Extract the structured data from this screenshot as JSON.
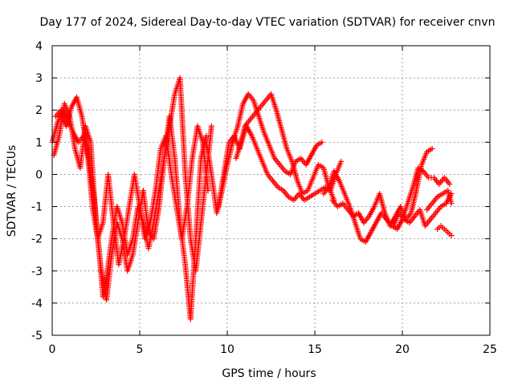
{
  "chart_data": {
    "type": "scatter",
    "title": "Day 177 of 2024, Sidereal Day-to-day VTEC variation (SDTVAR) for receiver cnvn",
    "xlabel": "GPS time / hours",
    "ylabel": "SDTVAR / TECUs",
    "xlim": [
      0,
      25
    ],
    "ylim": [
      -5,
      4
    ],
    "xticks": [
      "0",
      "5",
      "10",
      "15",
      "20",
      "25"
    ],
    "yticks": [
      "4",
      "3",
      "2",
      "1",
      "0",
      "-1",
      "-2",
      "-3",
      "-4",
      "-5"
    ],
    "grid": true,
    "marker": "+",
    "color": "#ff0000",
    "series": [
      {
        "name": "satellite-track-1",
        "x": [
          0.0,
          0.3,
          0.6,
          0.9,
          1.2,
          1.5,
          1.8,
          2.1,
          2.4,
          2.7,
          2.9,
          3.1,
          3.4,
          3.7,
          4.0,
          4.3,
          4.6,
          4.9,
          5.2,
          5.5,
          5.8,
          6.1,
          6.4,
          6.7,
          7.0,
          7.3,
          7.6,
          7.9,
          8.2,
          8.5,
          8.8,
          9.1
        ],
        "y": [
          1.0,
          1.6,
          2.0,
          1.7,
          1.3,
          1.0,
          1.2,
          0.5,
          -0.8,
          -2.5,
          -3.8,
          -3.2,
          -2.0,
          -1.0,
          -1.5,
          -2.5,
          -2.0,
          -1.0,
          -1.5,
          -2.3,
          -1.5,
          -0.5,
          0.5,
          1.5,
          2.5,
          3.0,
          0.0,
          -2.0,
          -3.0,
          -1.5,
          0.0,
          1.5
        ]
      },
      {
        "name": "satellite-track-2",
        "x": [
          0.1,
          0.4,
          0.7,
          1.0,
          1.3,
          1.6,
          1.9,
          2.2,
          2.5,
          2.8,
          3.1,
          3.4,
          3.7,
          4.0,
          4.3,
          4.6,
          4.9,
          5.2,
          5.5,
          5.8,
          6.1,
          6.4,
          6.7,
          7.0,
          7.3,
          7.6,
          7.9,
          8.2,
          8.5,
          8.8
        ],
        "y": [
          0.6,
          1.2,
          2.2,
          1.8,
          0.8,
          0.2,
          1.5,
          1.0,
          -1.5,
          -3.0,
          -3.9,
          -2.5,
          -1.5,
          -2.0,
          -3.0,
          -2.5,
          -1.5,
          -0.5,
          -1.8,
          -2.0,
          -1.0,
          0.5,
          1.8,
          0.5,
          -1.5,
          -2.8,
          -4.5,
          -2.0,
          0.5,
          1.2
        ]
      },
      {
        "name": "satellite-track-3",
        "x": [
          0.2,
          0.5,
          0.8,
          1.1,
          1.4,
          1.7,
          2.0,
          2.3,
          2.6,
          2.9,
          3.2,
          3.5,
          3.8,
          4.1,
          4.4,
          4.7,
          5.0,
          5.3,
          5.6,
          5.9,
          6.2,
          6.5,
          6.8,
          7.1,
          7.4,
          7.7,
          8.0,
          8.3,
          8.6,
          8.9
        ],
        "y": [
          1.8,
          2.0,
          1.5,
          2.1,
          2.4,
          1.8,
          0.8,
          -1.0,
          -2.0,
          -1.5,
          0.0,
          -1.5,
          -2.8,
          -2.0,
          -1.0,
          0.0,
          -1.0,
          -2.0,
          -1.5,
          -0.5,
          0.8,
          1.2,
          0.0,
          -1.0,
          -2.0,
          -1.0,
          0.5,
          1.5,
          1.0,
          -0.5
        ]
      },
      {
        "name": "satellite-track-4",
        "x": [
          8.8,
          9.1,
          9.4,
          9.7,
          10.0,
          10.3,
          10.6,
          10.9,
          11.2,
          11.5,
          11.8,
          12.1,
          12.4,
          12.7,
          13.0,
          13.3,
          13.6,
          13.9,
          14.2,
          14.5,
          14.8,
          15.1,
          15.4
        ],
        "y": [
          1.0,
          0.0,
          -1.2,
          -0.5,
          0.3,
          1.0,
          1.5,
          2.2,
          2.5,
          2.3,
          1.8,
          1.3,
          0.9,
          0.5,
          0.3,
          0.1,
          0.0,
          0.4,
          0.5,
          0.3,
          0.6,
          0.9,
          1.0
        ]
      },
      {
        "name": "satellite-track-5",
        "x": [
          9.5,
          9.8,
          10.1,
          10.4,
          10.7,
          11.0,
          11.3,
          11.6,
          11.9,
          12.2,
          12.5,
          12.8,
          13.1,
          13.4,
          13.7,
          14.0,
          14.3,
          14.6,
          14.9,
          15.2,
          15.5,
          15.8,
          16.1
        ],
        "y": [
          -1.0,
          0.0,
          1.0,
          1.2,
          0.8,
          1.5,
          1.7,
          1.9,
          2.1,
          2.3,
          2.5,
          2.0,
          1.4,
          0.8,
          0.4,
          -0.2,
          -0.6,
          -0.5,
          -0.1,
          0.3,
          0.2,
          -0.4,
          -0.8
        ]
      },
      {
        "name": "satellite-track-6",
        "x": [
          10.5,
          10.8,
          11.1,
          11.4,
          11.7,
          12.0,
          12.3,
          12.6,
          12.9,
          13.2,
          13.5,
          13.8,
          14.1,
          14.4,
          14.7,
          15.0,
          15.3,
          15.6,
          15.9,
          16.2,
          16.5
        ],
        "y": [
          0.5,
          1.0,
          1.5,
          1.2,
          0.8,
          0.4,
          0.0,
          -0.2,
          -0.4,
          -0.5,
          -0.7,
          -0.8,
          -0.6,
          -0.8,
          -0.7,
          -0.6,
          -0.5,
          -0.4,
          -0.5,
          0.0,
          0.4
        ]
      },
      {
        "name": "satellite-track-7",
        "x": [
          15.5,
          15.8,
          16.1,
          16.4,
          16.7,
          17.0,
          17.3,
          17.6,
          17.9,
          18.2,
          18.5,
          18.8,
          19.1,
          19.4,
          19.7,
          20.0,
          20.3,
          20.6,
          20.9,
          21.2,
          21.5,
          21.8,
          22.1,
          22.4,
          22.7
        ],
        "y": [
          -0.6,
          -0.4,
          0.1,
          -0.2,
          -0.6,
          -1.0,
          -1.5,
          -2.0,
          -2.1,
          -1.8,
          -1.5,
          -1.2,
          -1.4,
          -1.6,
          -1.7,
          -1.4,
          -0.9,
          -0.4,
          0.2,
          0.1,
          -0.1,
          -0.1,
          -0.3,
          -0.1,
          -0.3
        ]
      },
      {
        "name": "satellite-track-8",
        "x": [
          16.0,
          16.3,
          16.6,
          16.9,
          17.2,
          17.5,
          17.8,
          18.1,
          18.4,
          18.7,
          19.0,
          19.3,
          19.6,
          19.9,
          20.2,
          20.5,
          20.8,
          21.1,
          21.4,
          21.7
        ],
        "y": [
          -0.8,
          -1.0,
          -0.9,
          -1.1,
          -1.3,
          -1.2,
          -1.5,
          -1.3,
          -1.0,
          -0.6,
          -1.2,
          -1.6,
          -1.3,
          -1.0,
          -1.4,
          -1.2,
          -0.5,
          0.3,
          0.7,
          0.8
        ]
      },
      {
        "name": "satellite-track-9",
        "x": [
          19.5,
          19.8,
          20.1,
          20.4,
          20.7,
          21.0,
          21.3,
          21.6,
          21.9,
          22.2,
          22.5,
          22.8
        ],
        "y": [
          -1.6,
          -1.2,
          -1.4,
          -1.5,
          -1.3,
          -1.1,
          -1.6,
          -1.4,
          -1.2,
          -1.0,
          -0.9,
          -0.6
        ]
      },
      {
        "name": "satellite-track-10",
        "x": [
          21.4,
          21.7,
          22.0,
          22.3,
          22.6,
          22.8
        ],
        "y": [
          -1.1,
          -0.9,
          -0.7,
          -0.6,
          -0.5,
          -0.9
        ]
      },
      {
        "name": "satellite-track-11",
        "x": [
          22.0,
          22.2,
          22.4,
          22.6,
          22.8
        ],
        "y": [
          -1.7,
          -1.6,
          -1.7,
          -1.8,
          -1.9
        ]
      }
    ]
  }
}
